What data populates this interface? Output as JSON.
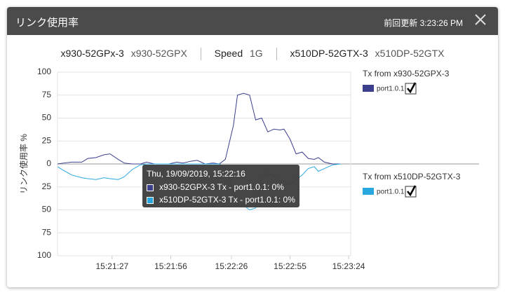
{
  "header": {
    "title": "リンク使用率",
    "updated": "前回更新 3:23:26 PM"
  },
  "info": {
    "source_name": "x930-52GPx-3",
    "source_model": "x930-52GPX",
    "speed_label": "Speed",
    "speed_value": "1G",
    "target_name": "x510DP-52GTX-3",
    "target_model": "x510DP-52GTX"
  },
  "tooltip": {
    "title": "Thu, 19/09/2019, 15:22:16",
    "lines": [
      "x930-52GPX-3 Tx - port1.0.1: 0%",
      "x510DP-52GTX-3 Tx - port1.0.1: 0%"
    ]
  },
  "chart_data": {
    "type": "line",
    "y_label": "リンク使用率 %",
    "x": [
      "15:21:00",
      "15:21:03",
      "15:21:07",
      "15:21:12",
      "15:21:15",
      "15:21:19",
      "15:21:23",
      "15:21:26",
      "15:21:30",
      "15:21:33",
      "15:21:37",
      "15:21:41",
      "15:21:44",
      "15:21:48",
      "15:21:52",
      "15:21:55",
      "15:21:59",
      "15:22:02",
      "15:22:06",
      "15:22:09",
      "15:22:13",
      "15:22:17",
      "15:22:20",
      "15:22:23",
      "15:22:27",
      "15:22:29",
      "15:22:32",
      "15:22:35",
      "15:22:38",
      "15:22:41",
      "15:22:44",
      "15:22:47",
      "15:22:50",
      "15:22:52",
      "15:22:55",
      "15:22:58",
      "15:23:01",
      "15:23:04",
      "15:23:07",
      "15:23:09",
      "15:23:12",
      "15:23:16",
      "15:23:20"
    ],
    "series": [
      {
        "group": "Tx from x930-52GPX-3",
        "name": "port1.0.1",
        "color": "#3b3f8c",
        "values": [
          0,
          1,
          2,
          2,
          6,
          7,
          10,
          11,
          5,
          1,
          0,
          0,
          2,
          0,
          0,
          0,
          2,
          1,
          3,
          4,
          0,
          1,
          0,
          5,
          42,
          75,
          77,
          75,
          48,
          50,
          35,
          38,
          37,
          38,
          27,
          11,
          13,
          6,
          5,
          7,
          2,
          0,
          0
        ]
      },
      {
        "group": "Tx from x510DP-52GTX-3",
        "name": "port1.0.1",
        "color": "#29a8e0",
        "values": [
          -3,
          -7,
          -12,
          -15,
          -16,
          -17,
          -15,
          -16,
          -17,
          -14,
          -6,
          -1,
          0,
          0,
          0,
          0,
          0,
          0,
          0,
          0,
          0,
          0,
          0,
          -5,
          -30,
          -45,
          -45,
          -50,
          -48,
          -15,
          -10,
          -13,
          -18,
          -23,
          -22,
          -17,
          -12,
          -5,
          -3,
          -8,
          -5,
          -1,
          0
        ]
      }
    ],
    "xlim": [
      "15:21:00",
      "15:23:25"
    ],
    "xticks": [
      "15:21:27",
      "15:21:56",
      "15:22:26",
      "15:22:55",
      "15:23:24"
    ],
    "ylim": [
      -100,
      100
    ],
    "yticks": [
      100,
      75,
      50,
      25,
      0,
      {
        "value": -25,
        "label": "25"
      },
      {
        "value": -50,
        "label": "50"
      },
      {
        "value": -75,
        "label": "75"
      },
      {
        "value": -100,
        "label": "100"
      }
    ],
    "grid": true
  }
}
